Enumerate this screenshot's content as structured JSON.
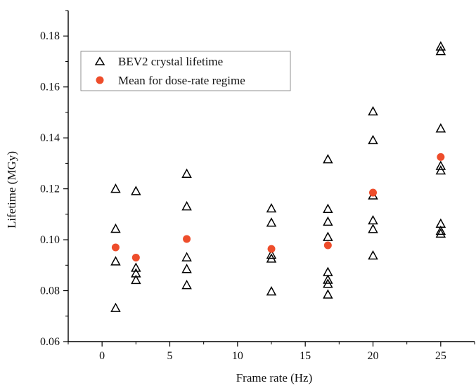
{
  "chart_data": {
    "type": "scatter",
    "xlabel": "Frame rate (Hz)",
    "ylabel": "Lifetime (MGy)",
    "xlim": [
      -2.5,
      27.5
    ],
    "ylim": [
      0.06,
      0.19
    ],
    "x_ticks": [
      0,
      5,
      10,
      15,
      20,
      25
    ],
    "y_ticks": [
      0.06,
      0.08,
      0.1,
      0.12,
      0.14,
      0.16,
      0.18
    ],
    "y_tick_labels": [
      "0.06",
      "0.08",
      "0.10",
      "0.12",
      "0.14",
      "0.16",
      "0.18"
    ],
    "grid": false,
    "legend_position": "top-left",
    "series": [
      {
        "name": "BEV2 crystal lifetime",
        "marker": "open-triangle",
        "color": "#000000",
        "points": [
          [
            1,
            0.12
          ],
          [
            1,
            0.1043
          ],
          [
            1,
            0.0915
          ],
          [
            1,
            0.0732
          ],
          [
            2.5,
            0.1191
          ],
          [
            2.5,
            0.089
          ],
          [
            2.5,
            0.0868
          ],
          [
            2.5,
            0.0842
          ],
          [
            6.25,
            0.1259
          ],
          [
            6.25,
            0.1131
          ],
          [
            6.25,
            0.0931
          ],
          [
            6.25,
            0.0885
          ],
          [
            6.25,
            0.0822
          ],
          [
            12.5,
            0.1123
          ],
          [
            12.5,
            0.1067
          ],
          [
            12.5,
            0.0941
          ],
          [
            12.5,
            0.0926
          ],
          [
            12.5,
            0.0797
          ],
          [
            16.67,
            0.1316
          ],
          [
            16.67,
            0.1121
          ],
          [
            16.67,
            0.1071
          ],
          [
            16.67,
            0.1011
          ],
          [
            16.67,
            0.0873
          ],
          [
            16.67,
            0.0843
          ],
          [
            16.67,
            0.0827
          ],
          [
            16.67,
            0.0785
          ],
          [
            20,
            0.1504
          ],
          [
            20,
            0.1391
          ],
          [
            20,
            0.1174
          ],
          [
            20,
            0.1076
          ],
          [
            20,
            0.1042
          ],
          [
            20,
            0.0938
          ],
          [
            25,
            0.1759
          ],
          [
            25,
            0.1741
          ],
          [
            25,
            0.1437
          ],
          [
            25,
            0.129
          ],
          [
            25,
            0.1272
          ],
          [
            25,
            0.1063
          ],
          [
            25,
            0.1035
          ],
          [
            25,
            0.1024
          ]
        ]
      },
      {
        "name": "Mean for dose-rate regime",
        "marker": "filled-circle",
        "color": "#EE4D2B",
        "points": [
          [
            1,
            0.097
          ],
          [
            2.5,
            0.093
          ],
          [
            6.25,
            0.1003
          ],
          [
            12.5,
            0.0964
          ],
          [
            16.67,
            0.0978
          ],
          [
            20,
            0.1185
          ],
          [
            25,
            0.1325
          ]
        ]
      }
    ]
  }
}
